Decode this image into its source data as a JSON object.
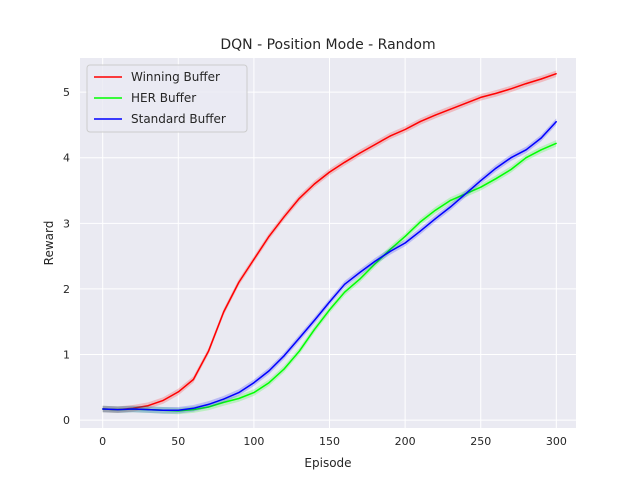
{
  "chart_data": {
    "type": "line",
    "title": "DQN - Position Mode - Random",
    "xlabel": "Episode",
    "ylabel": "Reward",
    "xlim": [
      -15,
      313
    ],
    "ylim": [
      -0.12,
      5.52
    ],
    "xticks": [
      0,
      50,
      100,
      150,
      200,
      250,
      300
    ],
    "yticks": [
      0,
      1,
      2,
      3,
      4,
      5
    ],
    "grid": true,
    "legend_position": "top-left",
    "x": [
      0,
      10,
      20,
      30,
      40,
      50,
      60,
      70,
      80,
      90,
      100,
      110,
      120,
      130,
      140,
      150,
      160,
      170,
      180,
      190,
      200,
      210,
      220,
      230,
      240,
      250,
      260,
      270,
      280,
      290,
      300
    ],
    "series": [
      {
        "name": "Winning Buffer",
        "color": "#ff0000",
        "values": [
          0.17,
          0.16,
          0.18,
          0.22,
          0.3,
          0.43,
          0.62,
          1.05,
          1.65,
          2.1,
          2.45,
          2.8,
          3.1,
          3.38,
          3.6,
          3.78,
          3.93,
          4.07,
          4.2,
          4.33,
          4.43,
          4.55,
          4.65,
          4.74,
          4.83,
          4.92,
          4.98,
          5.05,
          5.13,
          5.2,
          5.28
        ]
      },
      {
        "name": "HER Buffer",
        "color": "#00ff00",
        "values": [
          0.17,
          0.16,
          0.17,
          0.16,
          0.15,
          0.14,
          0.16,
          0.2,
          0.27,
          0.33,
          0.42,
          0.57,
          0.78,
          1.05,
          1.38,
          1.68,
          1.95,
          2.15,
          2.38,
          2.6,
          2.8,
          3.02,
          3.2,
          3.35,
          3.45,
          3.55,
          3.68,
          3.82,
          4.0,
          4.12,
          4.22
        ]
      },
      {
        "name": "Standard Buffer",
        "color": "#0000ff",
        "values": [
          0.17,
          0.16,
          0.17,
          0.16,
          0.15,
          0.15,
          0.18,
          0.24,
          0.32,
          0.42,
          0.57,
          0.75,
          0.98,
          1.25,
          1.52,
          1.8,
          2.07,
          2.25,
          2.42,
          2.57,
          2.7,
          2.88,
          3.07,
          3.25,
          3.45,
          3.65,
          3.84,
          4.0,
          4.12,
          4.3,
          4.55
        ]
      }
    ]
  }
}
